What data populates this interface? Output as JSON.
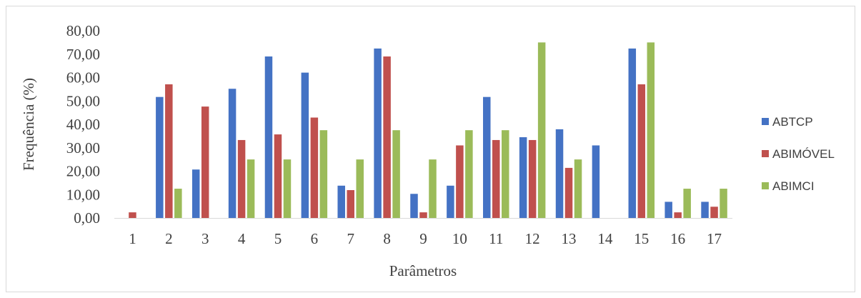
{
  "chart_data": {
    "type": "bar",
    "title": "",
    "xlabel": "Parâmetros",
    "ylabel": "Frequência (%)",
    "ylim": [
      0,
      80
    ],
    "yticks": [
      "0,00",
      "10,00",
      "20,00",
      "30,00",
      "40,00",
      "50,00",
      "60,00",
      "70,00",
      "80,00"
    ],
    "categories": [
      "1",
      "2",
      "3",
      "4",
      "5",
      "6",
      "7",
      "8",
      "9",
      "10",
      "11",
      "12",
      "13",
      "14",
      "15",
      "16",
      "17"
    ],
    "grid": false,
    "legend_position": "right",
    "series": [
      {
        "name": "ABTCP",
        "color": "#4472C4",
        "values": [
          0,
          51.7,
          20.7,
          55.2,
          69.0,
          62.1,
          13.8,
          72.4,
          10.3,
          13.8,
          51.7,
          34.5,
          37.9,
          31.0,
          72.4,
          6.9,
          6.9
        ]
      },
      {
        "name": "ABIMÓVEL",
        "color": "#C0504D",
        "values": [
          2.4,
          57.1,
          47.6,
          33.3,
          35.7,
          42.9,
          11.9,
          69.0,
          2.4,
          31.0,
          33.3,
          33.3,
          21.4,
          0,
          57.1,
          2.4,
          4.8
        ]
      },
      {
        "name": "ABIMCI",
        "color": "#9BBB59",
        "values": [
          0,
          12.5,
          0,
          25.0,
          25.0,
          37.5,
          25.0,
          37.5,
          25.0,
          37.5,
          37.5,
          75.0,
          25.0,
          0,
          75.0,
          12.5,
          12.5
        ]
      }
    ]
  }
}
